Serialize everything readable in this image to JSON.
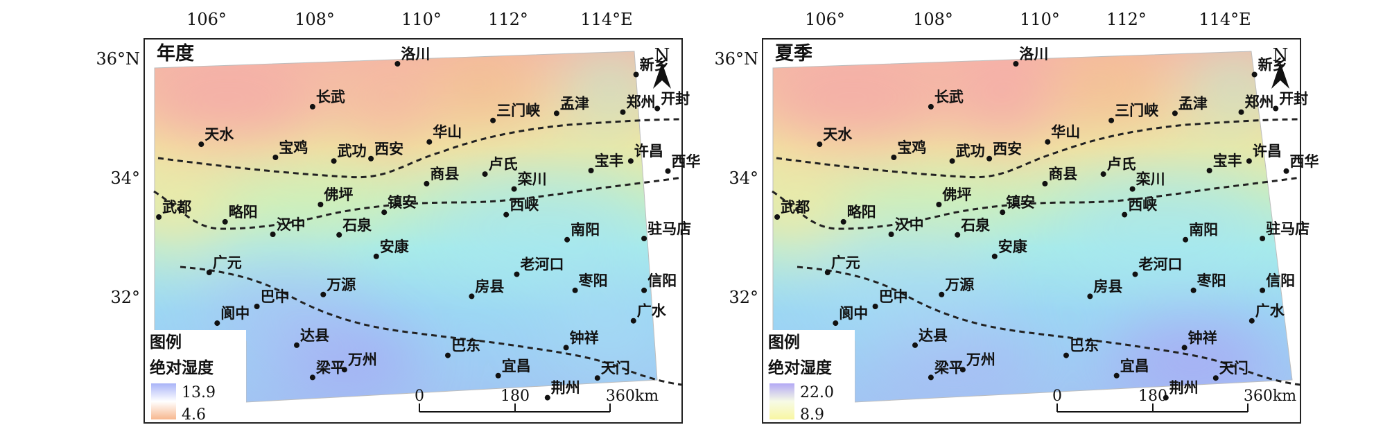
{
  "lon_ticks": [
    "106°",
    "108°",
    "110°",
    "112°",
    "114°E"
  ],
  "lat_ticks": [
    "36°N",
    "34°",
    "32°"
  ],
  "panels": [
    {
      "title": "年度",
      "legend_title": "图例",
      "legend_subtitle": "绝对湿度",
      "legend_max": "13.9",
      "legend_min": "4.6",
      "legend_colors": [
        "#a9b4f8",
        "#ffffff",
        "#f7b78f"
      ]
    },
    {
      "title": "夏季",
      "legend_title": "图例",
      "legend_subtitle": "绝对湿度",
      "legend_max": "22.0",
      "legend_min": "8.9",
      "legend_colors": [
        "#b3a9f5",
        "#ffffff",
        "#f8f6a2"
      ]
    }
  ],
  "scale_bar": {
    "labels": [
      "0",
      "180",
      "360km"
    ]
  },
  "north_label": "N",
  "cities": [
    {
      "name": "洛川",
      "lon": 109.4,
      "lat": 35.93
    },
    {
      "name": "新乡",
      "lon": 113.9,
      "lat": 35.75
    },
    {
      "name": "长武",
      "lon": 107.8,
      "lat": 35.21
    },
    {
      "name": "三门峡",
      "lon": 111.2,
      "lat": 34.98
    },
    {
      "name": "孟津",
      "lon": 112.4,
      "lat": 35.1
    },
    {
      "name": "郑州",
      "lon": 113.65,
      "lat": 35.12
    },
    {
      "name": "开封",
      "lon": 114.3,
      "lat": 35.18
    },
    {
      "name": "天水",
      "lon": 105.7,
      "lat": 34.58
    },
    {
      "name": "宝鸡",
      "lon": 107.1,
      "lat": 34.36
    },
    {
      "name": "武功",
      "lon": 108.2,
      "lat": 34.3
    },
    {
      "name": "西安",
      "lon": 108.9,
      "lat": 34.34
    },
    {
      "name": "华山",
      "lon": 110.0,
      "lat": 34.62
    },
    {
      "name": "商县",
      "lon": 109.95,
      "lat": 33.92
    },
    {
      "name": "卢氏",
      "lon": 111.05,
      "lat": 34.08
    },
    {
      "name": "栾川",
      "lon": 111.6,
      "lat": 33.83
    },
    {
      "name": "宝丰",
      "lon": 113.05,
      "lat": 34.14
    },
    {
      "name": "许昌",
      "lon": 113.8,
      "lat": 34.3
    },
    {
      "name": "西华",
      "lon": 114.5,
      "lat": 34.13
    },
    {
      "name": "武都",
      "lon": 104.9,
      "lat": 33.36
    },
    {
      "name": "略阳",
      "lon": 106.15,
      "lat": 33.28
    },
    {
      "name": "佛坪",
      "lon": 107.95,
      "lat": 33.57
    },
    {
      "name": "镇安",
      "lon": 109.15,
      "lat": 33.44
    },
    {
      "name": "西峡",
      "lon": 111.45,
      "lat": 33.4
    },
    {
      "name": "南阳",
      "lon": 112.6,
      "lat": 32.98
    },
    {
      "name": "驻马店",
      "lon": 114.05,
      "lat": 33.0
    },
    {
      "name": "汉中",
      "lon": 107.05,
      "lat": 33.07
    },
    {
      "name": "石泉",
      "lon": 108.3,
      "lat": 33.06
    },
    {
      "name": "安康",
      "lon": 109.0,
      "lat": 32.7
    },
    {
      "name": "老河口",
      "lon": 111.65,
      "lat": 32.4
    },
    {
      "name": "房县",
      "lon": 110.8,
      "lat": 32.03
    },
    {
      "name": "枣阳",
      "lon": 112.75,
      "lat": 32.13
    },
    {
      "name": "信阳",
      "lon": 114.05,
      "lat": 32.13
    },
    {
      "name": "广元",
      "lon": 105.85,
      "lat": 32.43
    },
    {
      "name": "万源",
      "lon": 108.0,
      "lat": 32.06
    },
    {
      "name": "巴中",
      "lon": 106.75,
      "lat": 31.86
    },
    {
      "name": "广水",
      "lon": 113.85,
      "lat": 31.62
    },
    {
      "name": "阆中",
      "lon": 106.0,
      "lat": 31.58
    },
    {
      "name": "钟祥",
      "lon": 112.58,
      "lat": 31.17
    },
    {
      "name": "达县",
      "lon": 107.5,
      "lat": 31.21
    },
    {
      "name": "巴东",
      "lon": 110.35,
      "lat": 31.04
    },
    {
      "name": "天门",
      "lon": 113.17,
      "lat": 30.66
    },
    {
      "name": "宜昌",
      "lon": 111.3,
      "lat": 30.7
    },
    {
      "name": "梁平",
      "lon": 107.8,
      "lat": 30.67
    },
    {
      "name": "万州",
      "lon": 108.4,
      "lat": 30.8
    },
    {
      "name": "荆州",
      "lon": 112.23,
      "lat": 30.33
    }
  ]
}
